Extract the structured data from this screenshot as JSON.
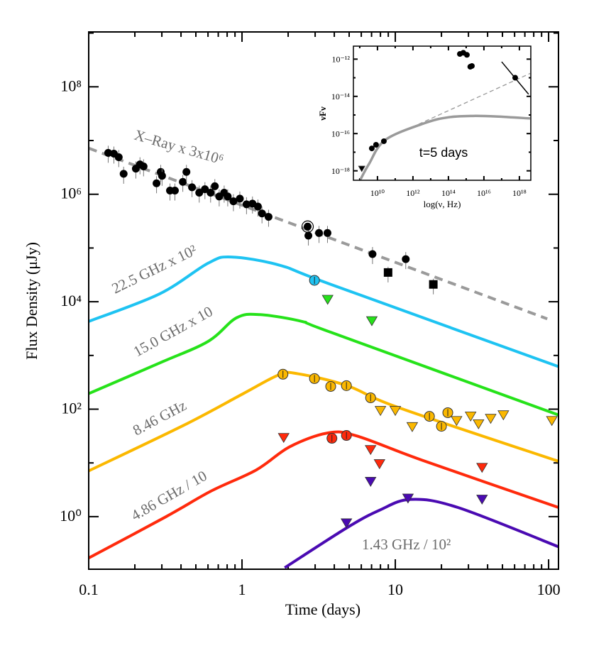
{
  "chart_data": [
    {
      "type": "line",
      "xlabel": "Time (days)",
      "ylabel": "Flux Density (μJy)",
      "xscale": "log",
      "yscale": "log",
      "xlim": [
        0.1,
        116
      ],
      "ylim": [
        0.105,
        1050000000.0
      ],
      "xticks": [
        {
          "v": 0.1,
          "label": "0.1"
        },
        {
          "v": 1,
          "label": "1"
        },
        {
          "v": 10,
          "label": "10"
        },
        {
          "v": 100,
          "label": "100"
        }
      ],
      "yticks": [
        {
          "v": 1,
          "label": "10⁰"
        },
        {
          "v": 100,
          "label": "10²"
        },
        {
          "v": 10000,
          "label": "10⁴"
        },
        {
          "v": 1000000,
          "label": "10⁶"
        },
        {
          "v": 100000000,
          "label": "10⁸"
        }
      ],
      "grid": false,
      "labels": {
        "xray": "X–Ray x 3x10⁶",
        "b225": "22.5 GHz x 10²",
        "b150": "15.0 GHz x 10",
        "b846": "8.46 GHz",
        "b486": "4.86 GHz / 10",
        "b143": "1.43 GHz / 10²"
      },
      "colors": {
        "xray": "#000000",
        "xray_model": "#9a9a9a",
        "b225": "#1ec3f2",
        "b150": "#26e21a",
        "b846": "#fbb800",
        "b486": "#ff2a0c",
        "b143": "#4a0ab2"
      },
      "xray": {
        "detections": {
          "t": [
            0.134,
            0.146,
            0.157,
            0.169,
            0.203,
            0.216,
            0.228,
            0.277,
            0.295,
            0.301,
            0.339,
            0.365,
            0.411,
            0.434,
            0.472,
            0.526,
            0.573,
            0.624,
            0.665,
            0.71,
            0.765,
            0.807,
            0.879,
            0.968,
            1.07,
            1.17,
            1.27,
            1.35,
            1.49,
            2.71,
            3.18,
            3.61,
            7.1,
            11.7
          ],
          "F": [
            5900000.0,
            5700000.0,
            4900000.0,
            2400000.0,
            3000000.0,
            3600000.0,
            3300000.0,
            1600000.0,
            2600000.0,
            2200000.0,
            1170000.0,
            1170000.0,
            1700000.0,
            2600000.0,
            1350000.0,
            1070000.0,
            1240000.0,
            1070000.0,
            1410000.0,
            910000.0,
            1070000.0,
            910000.0,
            740000.0,
            830000.0,
            650000.0,
            670000.0,
            590000.0,
            440000.0,
            380000.0,
            170000.0,
            190000.0,
            190000.0,
            77000.0,
            62000.0
          ]
        },
        "circled": {
          "t": [
            2.68
          ],
          "F": [
            250000.0
          ]
        },
        "squares": {
          "t": [
            8.97,
            17.7
          ],
          "F": [
            35000.0,
            21000.0
          ]
        },
        "model": {
          "t": [
            0.1,
            98
          ],
          "F": [
            7200000.0,
            4800.0
          ]
        }
      },
      "radio": [
        {
          "key": "b225",
          "model": {
            "t": [
              0.1,
              0.29,
              0.6,
              0.85,
              1.75,
              3.8,
              116
            ],
            "F": [
              4300,
              14000,
              52000,
              68000,
              48000,
              21000,
              620
            ]
          },
          "detections": {
            "t": [
              2.97
            ],
            "F": [
              25000
            ]
          },
          "upper_limits": {
            "t": [],
            "F": []
          }
        },
        {
          "key": "b150",
          "model": {
            "t": [
              0.1,
              0.29,
              0.6,
              0.92,
              1.31,
              2.48,
              3.81,
              116
            ],
            "F": [
              195,
              724,
              1820,
              5010,
              5750,
              4270,
              2690,
              78
            ]
          },
          "detections": {
            "t": [],
            "F": []
          },
          "upper_limits": {
            "t": [
              3.62,
              7.03
            ],
            "F": [
              11000,
              4400
            ]
          }
        },
        {
          "key": "b846",
          "model": {
            "t": [
              0.1,
              0.416,
              1.02,
              1.75,
              2.31,
              4.83,
              10.5,
              116
            ],
            "F": [
              7.1,
              50,
              195,
              437,
              457,
              275,
              107,
              10.7
            ]
          },
          "detections": {
            "t": [
              1.85,
              2.97,
              3.79,
              4.8,
              6.9,
              16.7,
              20.0,
              22.0
            ],
            "F": [
              447,
              371,
              265,
              274,
              163,
              73.6,
              48,
              86
            ]
          },
          "upper_limits": {
            "t": [
              8.0,
              10.0,
              12.9,
              25.1,
              31.0,
              34.9,
              41.9,
              50.7,
              105
            ],
            "F": [
              94,
              94,
              47,
              61,
              74,
              53,
              67,
              78,
              61
            ]
          }
        },
        {
          "key": "b486",
          "model": {
            "t": [
              0.1,
              0.316,
              0.63,
              1.24,
              2.05,
              3.61,
              5.55,
              15.0,
              116
            ],
            "F": [
              0.17,
              0.98,
              3.0,
              7.4,
              20,
              36,
              32,
              11.2,
              1.48
            ]
          },
          "detections": {
            "t": [
              3.86,
              4.8
            ],
            "F": [
              28.7,
              32.4
            ]
          },
          "upper_limits": {
            "t": [
              1.87,
              6.9,
              7.89,
              36.8
            ],
            "F": [
              29.5,
              17.6,
              9.6,
              8.2
            ]
          }
        },
        {
          "key": "b143",
          "model": {
            "t": [
              1.9,
              4.83,
              7.9,
              12.6,
              25.6,
              116
            ],
            "F": [
              0.112,
              0.62,
              1.32,
              2.09,
              1.48,
              0.275
            ]
          },
          "detections": {
            "t": [],
            "F": []
          },
          "upper_limits": {
            "t": [
              4.8,
              6.9,
              12.1,
              36.8
            ],
            "F": [
              0.76,
              4.5,
              2.2,
              2.1
            ]
          }
        }
      ]
    },
    {
      "type": "scatter",
      "xlabel": "log(ν, Hz)",
      "ylabel": "νFν",
      "annotation": "t=5 days",
      "xscale": "log",
      "yscale": "log",
      "xlim": [
        440000000.0,
        4.4e+18
      ],
      "ylim": [
        3.1e-19,
        5e-12
      ],
      "xticks": [
        {
          "v": 10000000000.0,
          "label": "10¹⁰"
        },
        {
          "v": 1000000000000.0,
          "label": "10¹²"
        },
        {
          "v": 100000000000000.0,
          "label": "10¹⁴"
        },
        {
          "v": 1e+16,
          "label": "10¹⁶"
        },
        {
          "v": 1e+18,
          "label": "10¹⁸"
        }
      ],
      "yticks": [
        {
          "v": 1e-18,
          "label": "10⁻¹⁸"
        },
        {
          "v": 1e-16,
          "label": "10⁻¹⁶"
        },
        {
          "v": 1e-14,
          "label": "10⁻¹⁴"
        },
        {
          "v": 1e-12,
          "label": "10⁻¹²"
        }
      ],
      "points": {
        "nu": [
          4800000000.0,
          8300000000.0,
          23000000000.0,
          440000000000000.0,
          690000000000000.0,
          1100000000000000.0,
          1700000000000000.0,
          2100000000000000.0,
          5.8e+17
        ],
        "nuFnu": [
          1.6e-17,
          2.5e-17,
          3.9e-17,
          1.9e-12,
          2.2e-12,
          1.7e-12,
          3.9e-13,
          4.3e-13,
          1e-13
        ]
      },
      "upper_limits": {
        "nu": [
          1300000000.0
        ],
        "nuFnu": [
          1.3e-18
        ]
      },
      "xray_spectrum": {
        "nu": [
          1e+17,
          3.3e+18
        ],
        "nuFnu": [
          7.2e-13,
          1.3e-14
        ]
      },
      "model": {
        "nu": [
          1100000000.0,
          3300000000.0,
          28000000000.0,
          5200000000000.0,
          110000000000000.0,
          2500000000000000.0,
          5.2e+16,
          4e+18
        ],
        "nuFnu": [
          3.4e-19,
          2.3e-18,
          4.6e-17,
          3.8e-16,
          7.6e-16,
          8.9e-16,
          8.3e-16,
          6.5e-16
        ]
      },
      "extrapolation": {
        "nu": [
          2100000000000.0,
          4e+18
        ],
        "nuFnu": [
          3.2e-16,
          1.7e-13
        ]
      }
    }
  ]
}
